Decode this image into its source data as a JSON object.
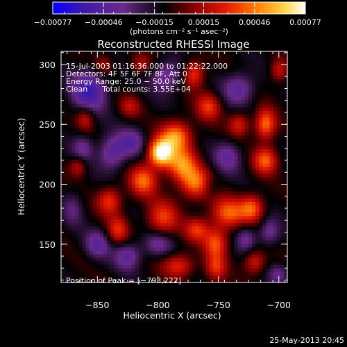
{
  "chart_data": {
    "type": "heatmap",
    "title": "Reconstructed RHESSI Image",
    "xlabel": "Heliocentric X (arcsec)",
    "ylabel": "Heliocentric Y (arcsec)",
    "xlim": [
      -880,
      -693
    ],
    "ylim": [
      118,
      311
    ],
    "xticks": [
      -850,
      -800,
      -750,
      -700
    ],
    "yticks": [
      150,
      200,
      250,
      300
    ],
    "xtick_labels": [
      "−850",
      "−800",
      "−750",
      "−700"
    ],
    "ytick_labels": [
      "150",
      "200",
      "250",
      "300"
    ],
    "colorbar": {
      "ticks": [
        -0.00077,
        -0.00046,
        -0.00015,
        0.00015,
        0.00046,
        0.00077
      ],
      "tick_labels": [
        "−0.00077",
        "−0.00046",
        "−0.00015",
        "0.00015",
        "0.00046",
        "0.00077"
      ],
      "unit_label": "(photons cm⁻² s⁻¹ asec⁻²)",
      "range": [
        -0.00077,
        0.00077
      ],
      "colors": [
        "#0000ff",
        "#3e1aa8",
        "#6a2a8a",
        "#000000",
        "#8a0000",
        "#e01800",
        "#ff7800",
        "#ffd84a",
        "#ffffff"
      ]
    },
    "annotations": [
      "15-Jul-2003 01:16:36.000 to 01:22:22.000",
      "Detectors: 4F 5F 6F 7F 8F, Att 0",
      "Energy Range: 25.0 − 50.0 keV",
      "Clean      Total counts: 3.55E+04",
      "Position of Peak = [−793,222]"
    ],
    "peak": {
      "x": -793,
      "y": 222
    },
    "timestamp": "25-May-2013 20:45",
    "blobs": [
      {
        "x": -798,
        "y": 226,
        "sx": 7,
        "sy": 8,
        "a": 1.0
      },
      {
        "x": -785,
        "y": 240,
        "sx": 9,
        "sy": 9,
        "a": 0.68
      },
      {
        "x": -780,
        "y": 216,
        "sx": 9,
        "sy": 10,
        "a": 0.64
      },
      {
        "x": -812,
        "y": 203,
        "sx": 8,
        "sy": 9,
        "a": 0.58
      },
      {
        "x": -768,
        "y": 200,
        "sx": 9,
        "sy": 9,
        "a": 0.58
      },
      {
        "x": -742,
        "y": 176,
        "sx": 10,
        "sy": 9,
        "a": 0.56
      },
      {
        "x": -752,
        "y": 151,
        "sx": 7,
        "sy": 9,
        "a": 0.52
      },
      {
        "x": -722,
        "y": 180,
        "sx": 7,
        "sy": 8,
        "a": 0.55
      },
      {
        "x": -711,
        "y": 250,
        "sx": 6,
        "sy": 9,
        "a": 0.62
      },
      {
        "x": -711,
        "y": 220,
        "sx": 7,
        "sy": 8,
        "a": 0.56
      },
      {
        "x": -770,
        "y": 292,
        "sx": 6,
        "sy": 8,
        "a": 0.5
      },
      {
        "x": -758,
        "y": 265,
        "sx": 7,
        "sy": 8,
        "a": 0.46
      },
      {
        "x": -840,
        "y": 186,
        "sx": 7,
        "sy": 8,
        "a": 0.48
      },
      {
        "x": -833,
        "y": 162,
        "sx": 6,
        "sy": 8,
        "a": 0.42
      },
      {
        "x": -796,
        "y": 172,
        "sx": 9,
        "sy": 10,
        "a": 0.48
      },
      {
        "x": -783,
        "y": 132,
        "sx": 9,
        "sy": 7,
        "a": 0.45
      },
      {
        "x": -752,
        "y": 130,
        "sx": 6,
        "sy": 8,
        "a": 0.42
      },
      {
        "x": -720,
        "y": 135,
        "sx": 6,
        "sy": 7,
        "a": 0.4
      },
      {
        "x": -860,
        "y": 255,
        "sx": 5,
        "sy": 7,
        "a": 0.34
      },
      {
        "x": -866,
        "y": 215,
        "sx": 5,
        "sy": 6,
        "a": 0.34
      },
      {
        "x": -823,
        "y": 265,
        "sx": 6,
        "sy": 6,
        "a": 0.3
      },
      {
        "x": -845,
        "y": 300,
        "sx": 6,
        "sy": 6,
        "a": 0.26
      },
      {
        "x": -814,
        "y": 300,
        "sx": 6,
        "sy": 6,
        "a": 0.28
      },
      {
        "x": -733,
        "y": 250,
        "sx": 6,
        "sy": 7,
        "a": 0.4
      },
      {
        "x": -700,
        "y": 295,
        "sx": 5,
        "sy": 7,
        "a": 0.36
      },
      {
        "x": -768,
        "y": 162,
        "sx": 7,
        "sy": 7,
        "a": 0.44
      },
      {
        "x": -850,
        "y": 150,
        "sx": 7,
        "sy": 8,
        "a": -0.36
      },
      {
        "x": -862,
        "y": 230,
        "sx": 6,
        "sy": 8,
        "a": -0.3
      },
      {
        "x": -857,
        "y": 278,
        "sx": 10,
        "sy": 12,
        "a": -0.55
      },
      {
        "x": -838,
        "y": 226,
        "sx": 8,
        "sy": 10,
        "a": -0.42
      },
      {
        "x": -825,
        "y": 140,
        "sx": 8,
        "sy": 8,
        "a": -0.38
      },
      {
        "x": -822,
        "y": 235,
        "sx": 8,
        "sy": 8,
        "a": -0.36
      },
      {
        "x": -793,
        "y": 290,
        "sx": 9,
        "sy": 9,
        "a": -0.38
      },
      {
        "x": -800,
        "y": 150,
        "sx": 8,
        "sy": 7,
        "a": -0.32
      },
      {
        "x": -733,
        "y": 280,
        "sx": 9,
        "sy": 9,
        "a": -0.4
      },
      {
        "x": -742,
        "y": 223,
        "sx": 8,
        "sy": 9,
        "a": -0.34
      },
      {
        "x": -727,
        "y": 155,
        "sx": 6,
        "sy": 8,
        "a": -0.3
      },
      {
        "x": -708,
        "y": 160,
        "sx": 6,
        "sy": 8,
        "a": -0.32
      },
      {
        "x": -757,
        "y": 198,
        "sx": 6,
        "sy": 6,
        "a": -0.2
      },
      {
        "x": -700,
        "y": 125,
        "sx": 6,
        "sy": 6,
        "a": -0.26
      },
      {
        "x": -870,
        "y": 180,
        "sx": 6,
        "sy": 10,
        "a": -0.22
      }
    ]
  }
}
